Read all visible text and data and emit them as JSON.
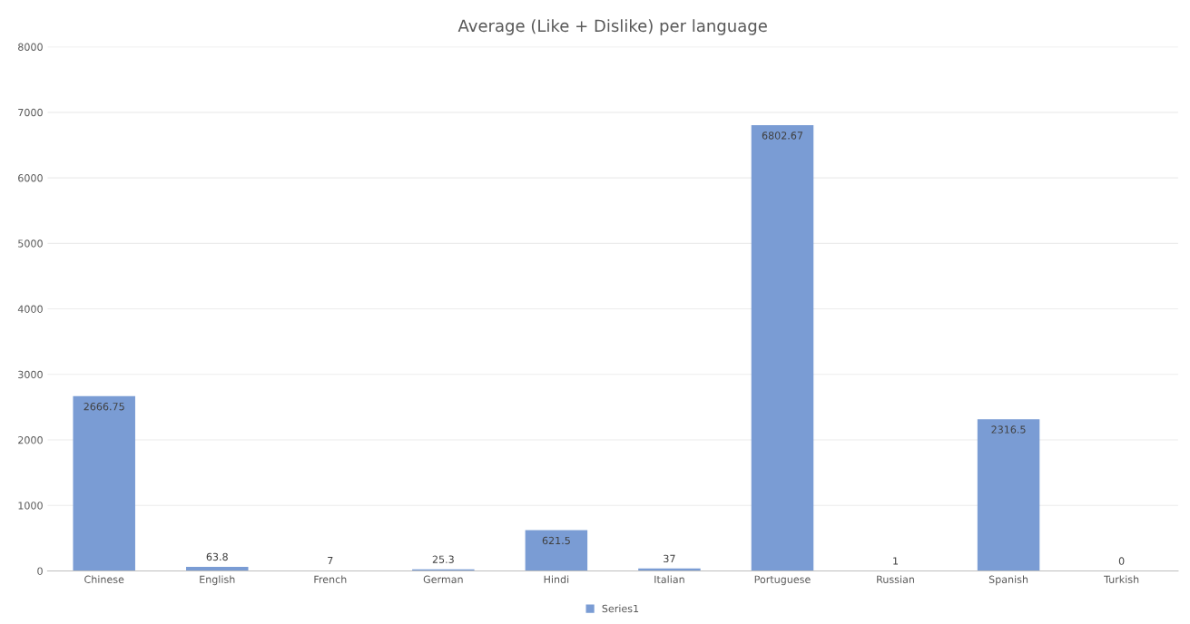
{
  "chart_data": {
    "type": "bar",
    "title": "Average (Like + Dislike) per language",
    "categories": [
      "Chinese",
      "English",
      "French",
      "German",
      "Hindi",
      "Italian",
      "Portuguese",
      "Russian",
      "Spanish",
      "Turkish"
    ],
    "series": [
      {
        "name": "Series1",
        "color": "#7a9cd4",
        "values": [
          2666.75,
          63.8,
          7,
          25.3,
          621.5,
          37,
          6802.67,
          1,
          2316.5,
          0
        ]
      }
    ],
    "ylim": [
      0,
      8000
    ],
    "yticks": [
      0,
      1000,
      2000,
      3000,
      4000,
      5000,
      6000,
      7000,
      8000
    ],
    "grid": "y",
    "legend": "bottom",
    "data_labels": true
  }
}
